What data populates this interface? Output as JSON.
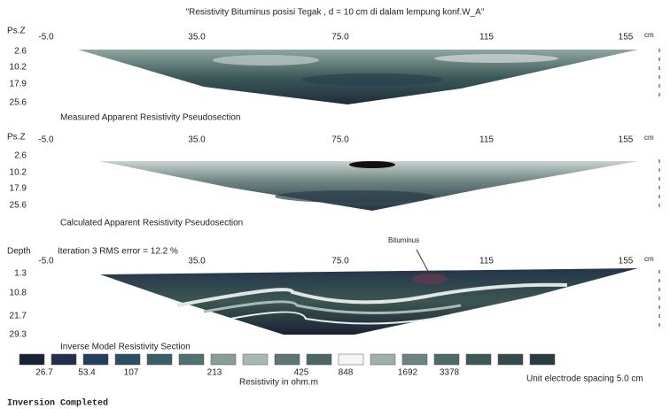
{
  "title": "\"Resistivity Bituminus posisi Tegak , d = 10 cm di dalam lempung konf.W_A\"",
  "panels": [
    {
      "axis_label": "Ps.Z",
      "x_ticks": [
        "-5.0",
        "35.0",
        "75.0",
        "115",
        "155"
      ],
      "x_unit": "cm",
      "depth_ticks": [
        "2.6",
        "10.2",
        "17.9",
        "25.6"
      ],
      "caption": "Measured Apparent Resistivity Pseudosection"
    },
    {
      "axis_label": "Ps.Z",
      "x_ticks": [
        "-5.0",
        "35.0",
        "75.0",
        "115",
        "155"
      ],
      "x_unit": "cm",
      "depth_ticks": [
        "2.6",
        "10.2",
        "17.9",
        "25.6"
      ],
      "caption": "Calculated Apparent Resistivity Pseudosection"
    },
    {
      "axis_label": "Depth",
      "header": "Iteration 3 RMS error = 12.2 %",
      "annotation": "Bituminus",
      "x_ticks": [
        "-5.0",
        "35.0",
        "75.0",
        "115",
        "155"
      ],
      "x_unit": "cm",
      "depth_ticks": [
        "1.3",
        "10.8",
        "21.7",
        "29.3"
      ],
      "caption": "Inverse Model Resistivity Section"
    }
  ],
  "color_scale": {
    "labels": [
      "26.7",
      "53.4",
      "107",
      "213",
      "425",
      "848",
      "1692",
      "3378"
    ],
    "title": "Resistivity in ohm.m"
  },
  "electrode_spacing": "Unit electrode spacing 5.0 cm",
  "status": "Inversion Completed"
}
